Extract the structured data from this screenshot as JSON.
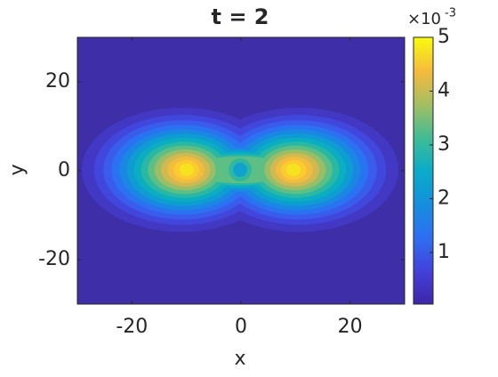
{
  "chart_data": {
    "type": "contourf",
    "title": "t = 2",
    "x_label": "x",
    "y_label": "y",
    "xlim": [
      -30,
      30
    ],
    "xticks": [
      -20,
      0,
      20
    ],
    "ylim": [
      -30,
      30
    ],
    "yticks": [
      -20,
      0,
      20
    ],
    "colorbar": {
      "clim": [
        4e-05,
        0.005
      ],
      "ticks": [
        {
          "value": 0.001,
          "label": "1"
        },
        {
          "value": 0.002,
          "label": "2"
        },
        {
          "value": 0.003,
          "label": "3"
        },
        {
          "value": 0.004,
          "label": "4"
        },
        {
          "value": 0.005,
          "label": "5"
        }
      ],
      "multiplier": "×10",
      "exponent": "-3"
    },
    "colormap": "parula"
  }
}
